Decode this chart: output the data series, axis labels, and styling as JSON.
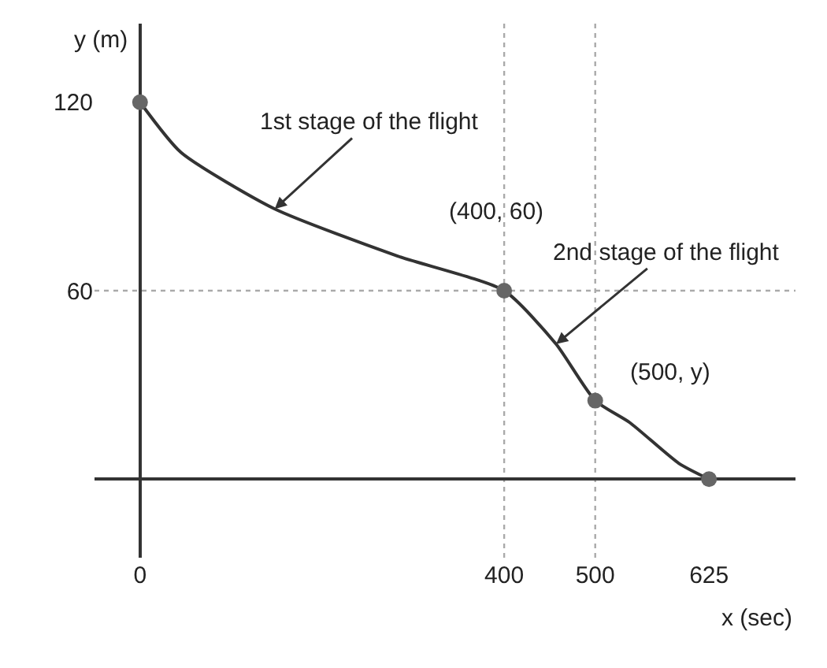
{
  "chart_data": {
    "type": "line",
    "xlabel": "x (sec)",
    "ylabel": "y (m)",
    "xlim": [
      -50,
      720
    ],
    "ylim": [
      -25,
      145
    ],
    "xticks": [
      0,
      400,
      500,
      625
    ],
    "yticks": [
      60,
      120
    ],
    "series": [
      {
        "color": "#333333",
        "marker": "none",
        "x": [
          0,
          45,
          148,
          283,
          400,
          457,
          500,
          538,
          592,
          625
        ],
        "values": [
          120,
          104,
          86,
          71,
          60,
          43,
          25,
          18,
          5,
          0
        ]
      },
      {
        "type": "scatter",
        "color": "#666666",
        "marker": "circle",
        "x": [
          0,
          400,
          500,
          625
        ],
        "values": [
          120,
          60,
          25,
          0
        ]
      }
    ],
    "annotations": [
      {
        "text": "1st stage of the flight",
        "x": 148,
        "y": 86
      },
      {
        "text": "2nd stage of the flight",
        "x": 457,
        "y": 43
      },
      {
        "text": "(400, 60)",
        "x": 400,
        "y": 60
      },
      {
        "text": "(500, y)",
        "x": 500,
        "y": 25
      }
    ],
    "ref_lines": [
      {
        "axis": "y",
        "value": 60,
        "line_style": "dotted",
        "color": "#aaaaaa"
      },
      {
        "axis": "x",
        "value": 400,
        "line_style": "dotted",
        "color": "#aaaaaa"
      },
      {
        "axis": "x",
        "value": 500,
        "line_style": "dotted",
        "color": "#aaaaaa"
      }
    ]
  }
}
